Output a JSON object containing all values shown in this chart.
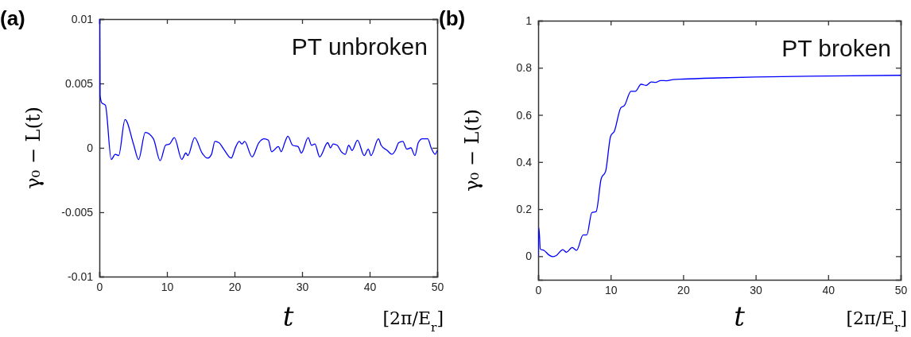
{
  "chart_data": [
    {
      "type": "line",
      "title": "(a)",
      "xlabel": "t",
      "ylabel": "γ₀ − L(t)",
      "annotations": [
        "PT unbroken",
        "[2π/E$_{r}$]"
      ],
      "series": [
        {
          "color": "#0000ff",
          "x": [
            0,
            0.05,
            0.1,
            0.35,
            0.9,
            1.76,
            2.35,
            2.86,
            3.8,
            5.1,
            5.8,
            6.8,
            8.0,
            9.0,
            9.8,
            10.4,
            11.1,
            12.2,
            12.8,
            13.1,
            14.1,
            15.2,
            16.0,
            16.6,
            17.1,
            17.7,
            18.4,
            19.5,
            20.2,
            20.7,
            21.1,
            21.5,
            22.6,
            23.6,
            24.4,
            25,
            25.5,
            26.5,
            26.9,
            27.5,
            27.9,
            28.6,
            29.4,
            29.9,
            30.9,
            31.4,
            31.9,
            32.6,
            33.8,
            34.2,
            34.6,
            35.2,
            35.8,
            36.4,
            36.9,
            37.4,
            38.2,
            39.2,
            39.8,
            40.2,
            41.3,
            41.7,
            42.6,
            43.3,
            43.8,
            44.3,
            44.9,
            45.5,
            46.1,
            46.7,
            47.2,
            47.8,
            48.6,
            49.1,
            49.7,
            50
          ],
          "values": [
            0.01,
            0.01,
            0.0041,
            0.0035,
            0.0033,
            -0.0009,
            -0.0005,
            -0.0006,
            0.0022,
            0.0002,
            -0.0009,
            0.0012,
            0.0007,
            -0.001,
            0.0002,
            0.0003,
            0.0008,
            -0.0009,
            -0.0004,
            -0.0006,
            0.0008,
            -0.0004,
            -0.0008,
            -0.0005,
            0.0005,
            0.0004,
            -0.0001,
            -0.0008,
            0.0001,
            0.0005,
            0.0003,
            0.0005,
            -0.0007,
            0.0004,
            0.0007,
            0.0006,
            -0.0003,
            0.0001,
            -0.0003,
            0.0005,
            0.0009,
            0.0002,
            0.0001,
            -0.0004,
            0.0008,
            0.0002,
            0.0003,
            -0.0007,
            0.0004,
            0,
            0.0003,
            0.0002,
            -0.0003,
            -0.0005,
            0.0002,
            -0.0002,
            0.0006,
            -0.0006,
            -0.0001,
            -0.0006,
            0.0007,
            0.0002,
            -0.0002,
            -0.0005,
            -0.0002,
            0.0004,
            0.0005,
            -0.0001,
            0,
            -0.0006,
            0.0004,
            0.0007,
            0.0007,
            0,
            -0.0005,
            -0.0002
          ]
        }
      ],
      "xlim": [
        0,
        50
      ],
      "xticks": [
        0,
        10,
        20,
        30,
        40,
        50
      ],
      "ylim": [
        -0.01,
        0.01
      ],
      "yticks": [
        -0.01,
        -0.005,
        0,
        0.005,
        0.01
      ],
      "grid": false
    },
    {
      "type": "line",
      "title": "(b)",
      "xlabel": "t",
      "ylabel": "γ₀ − L(t)",
      "annotations": [
        "PT broken",
        "[2π/E$_{r}$]"
      ],
      "series": [
        {
          "color": "#0000ff",
          "x": [
            0,
            0.1,
            0.3,
            0.8,
            1.5,
            2.0,
            2.5,
            3.4,
            3.9,
            4.7,
            5.3,
            6.2,
            6.7,
            7.4,
            8.0,
            8.7,
            9.3,
            10.0,
            10.5,
            11.4,
            11.9,
            12.8,
            13.4,
            14.2,
            14.9,
            15.6,
            16.2,
            16.9,
            17.7,
            18.6,
            20,
            25,
            30,
            40,
            50
          ],
          "values": [
            0,
            0.12,
            0.03,
            0.025,
            0.005,
            -0.002,
            0.003,
            0.028,
            0.017,
            0.037,
            0.025,
            0.09,
            0.09,
            0.185,
            0.19,
            0.33,
            0.36,
            0.51,
            0.53,
            0.63,
            0.64,
            0.7,
            0.7,
            0.73,
            0.725,
            0.74,
            0.738,
            0.746,
            0.745,
            0.75,
            0.752,
            0.757,
            0.761,
            0.765,
            0.768
          ]
        }
      ],
      "xlim": [
        0,
        50
      ],
      "xticks": [
        0,
        10,
        20,
        30,
        40,
        50
      ],
      "ylim": [
        -0.1,
        1
      ],
      "yticks": [
        0,
        0.2,
        0.4,
        0.6,
        0.8,
        1
      ],
      "grid": false
    }
  ]
}
